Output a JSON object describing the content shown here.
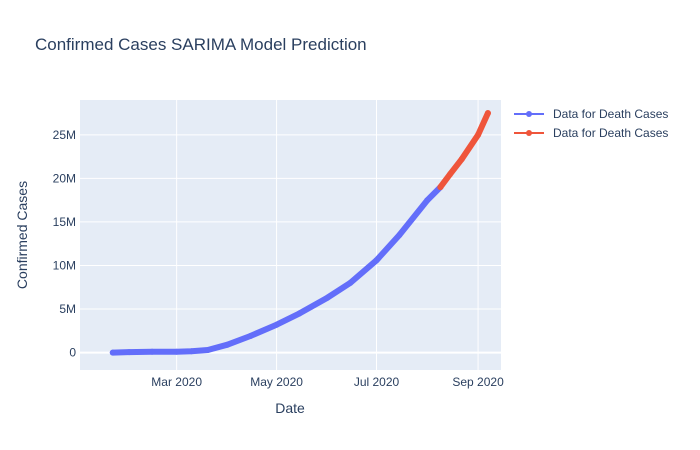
{
  "chart_data": {
    "type": "line",
    "title": "Confirmed Cases SARIMA Model Prediction",
    "xlabel": "Date",
    "ylabel": "Confirmed Cases",
    "x_type": "date",
    "xlim": [
      "2020-01-02",
      "2020-09-15"
    ],
    "ylim": [
      -2000000,
      29000000
    ],
    "x_ticks": [
      {
        "value": "2020-03-01",
        "label": "Mar 2020"
      },
      {
        "value": "2020-05-01",
        "label": "May 2020"
      },
      {
        "value": "2020-07-01",
        "label": "Jul 2020"
      },
      {
        "value": "2020-09-01",
        "label": "Sep 2020"
      }
    ],
    "y_ticks": [
      {
        "value": 0,
        "label": "0"
      },
      {
        "value": 5000000,
        "label": "5M"
      },
      {
        "value": 10000000,
        "label": "10M"
      },
      {
        "value": 15000000,
        "label": "15M"
      },
      {
        "value": 20000000,
        "label": "20M"
      },
      {
        "value": 25000000,
        "label": "25M"
      }
    ],
    "grid": true,
    "legend_position": "top-right",
    "series": [
      {
        "name": "Data for Death Cases",
        "color": "#636efa",
        "points": [
          [
            "2020-01-22",
            0
          ],
          [
            "2020-02-01",
            50000
          ],
          [
            "2020-02-15",
            100000
          ],
          [
            "2020-03-01",
            100000
          ],
          [
            "2020-03-10",
            150000
          ],
          [
            "2020-03-20",
            300000
          ],
          [
            "2020-04-01",
            900000
          ],
          [
            "2020-04-15",
            1900000
          ],
          [
            "2020-05-01",
            3200000
          ],
          [
            "2020-05-15",
            4500000
          ],
          [
            "2020-06-01",
            6300000
          ],
          [
            "2020-06-15",
            8000000
          ],
          [
            "2020-07-01",
            10600000
          ],
          [
            "2020-07-15",
            13500000
          ],
          [
            "2020-08-01",
            17500000
          ],
          [
            "2020-08-09",
            19000000
          ]
        ]
      },
      {
        "name": "Data for Death Cases",
        "color": "#ef553b",
        "points": [
          [
            "2020-08-09",
            19000000
          ],
          [
            "2020-08-15",
            20500000
          ],
          [
            "2020-08-22",
            22200000
          ],
          [
            "2020-09-01",
            25000000
          ],
          [
            "2020-09-07",
            27500000
          ]
        ]
      }
    ]
  }
}
